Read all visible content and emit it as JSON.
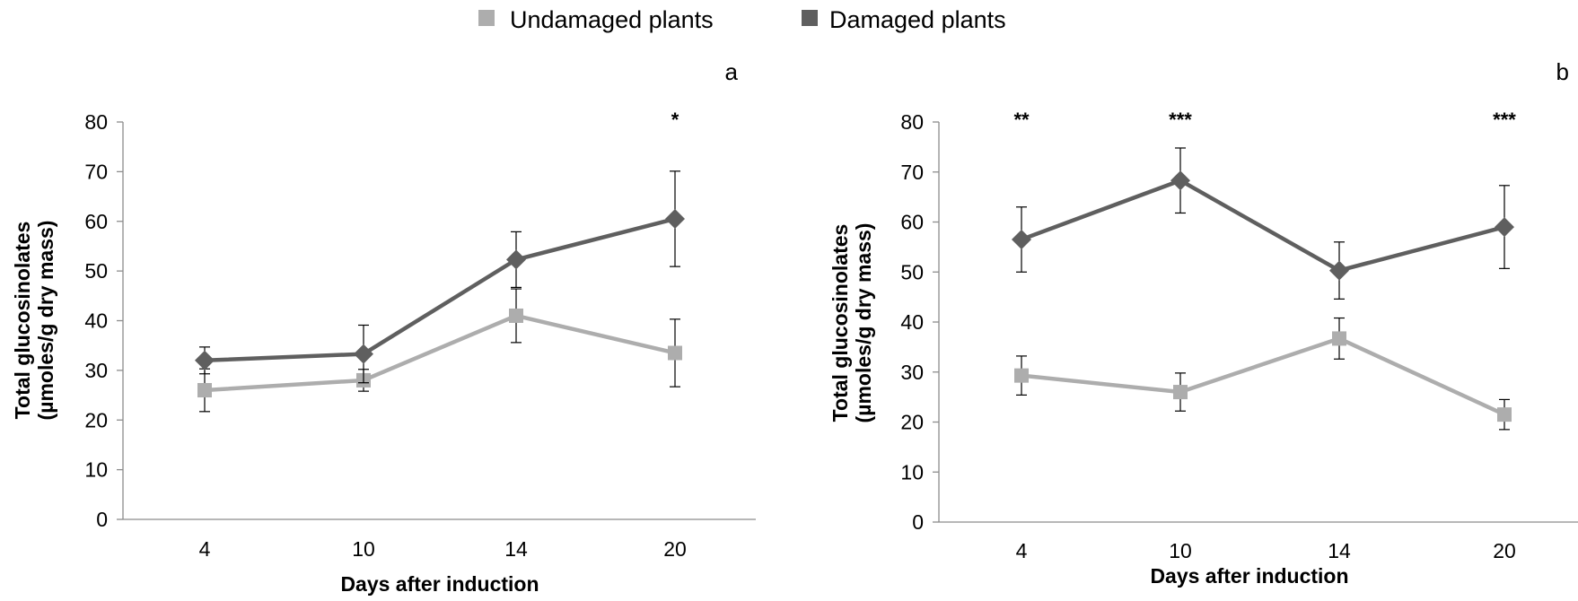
{
  "legend": {
    "items": [
      {
        "name": "Undamaged plants",
        "color": "#adadad",
        "marker": "square"
      },
      {
        "name": "Damaged plants",
        "color": "#5f5f5f",
        "marker": "diamond"
      }
    ]
  },
  "chart_data": [
    {
      "type": "line",
      "panel_label": "a",
      "title": "",
      "xlabel": "Days after induction",
      "ylabel_line1": "Total glucosinolates",
      "ylabel_line2": "(µmoles/g dry mass)",
      "categories": [
        "4",
        "10",
        "14",
        "20"
      ],
      "ylim": [
        0,
        80
      ],
      "yticks": [
        "0",
        "10",
        "20",
        "30",
        "40",
        "50",
        "60",
        "70",
        "80"
      ],
      "grid": false,
      "legend_position": "top-center",
      "series": [
        {
          "name": "Undamaged plants",
          "color": "#adadad",
          "marker": "square",
          "values": [
            26,
            28,
            41,
            33.5
          ],
          "errors": [
            4.3,
            2.2,
            5.4,
            6.8
          ]
        },
        {
          "name": "Damaged plants",
          "color": "#5f5f5f",
          "marker": "diamond",
          "values": [
            32,
            33.3,
            52.3,
            60.5
          ],
          "errors": [
            2.7,
            5.8,
            5.6,
            9.6
          ]
        }
      ],
      "significance": [
        {
          "category": "20",
          "label": "*"
        }
      ]
    },
    {
      "type": "line",
      "panel_label": "b",
      "title": "",
      "xlabel": "Days after induction",
      "ylabel_line1": "Total glucosinolates",
      "ylabel_line2": "(µmoles/g dry mass)",
      "categories": [
        "4",
        "10",
        "14",
        "20"
      ],
      "ylim": [
        0,
        80
      ],
      "yticks": [
        "0",
        "10",
        "20",
        "30",
        "40",
        "50",
        "60",
        "70",
        "80"
      ],
      "grid": false,
      "legend_position": "top-center",
      "series": [
        {
          "name": "Undamaged plants",
          "color": "#adadad",
          "marker": "square",
          "values": [
            29.3,
            26,
            36.7,
            21.5
          ],
          "errors": [
            3.9,
            3.8,
            4.1,
            3
          ]
        },
        {
          "name": "Damaged plants",
          "color": "#5f5f5f",
          "marker": "diamond",
          "values": [
            56.5,
            68.3,
            50.3,
            59
          ],
          "errors": [
            6.5,
            6.5,
            5.7,
            8.3
          ]
        }
      ],
      "significance": [
        {
          "category": "4",
          "label": "**"
        },
        {
          "category": "10",
          "label": "***"
        },
        {
          "category": "20",
          "label": "***"
        }
      ]
    }
  ]
}
